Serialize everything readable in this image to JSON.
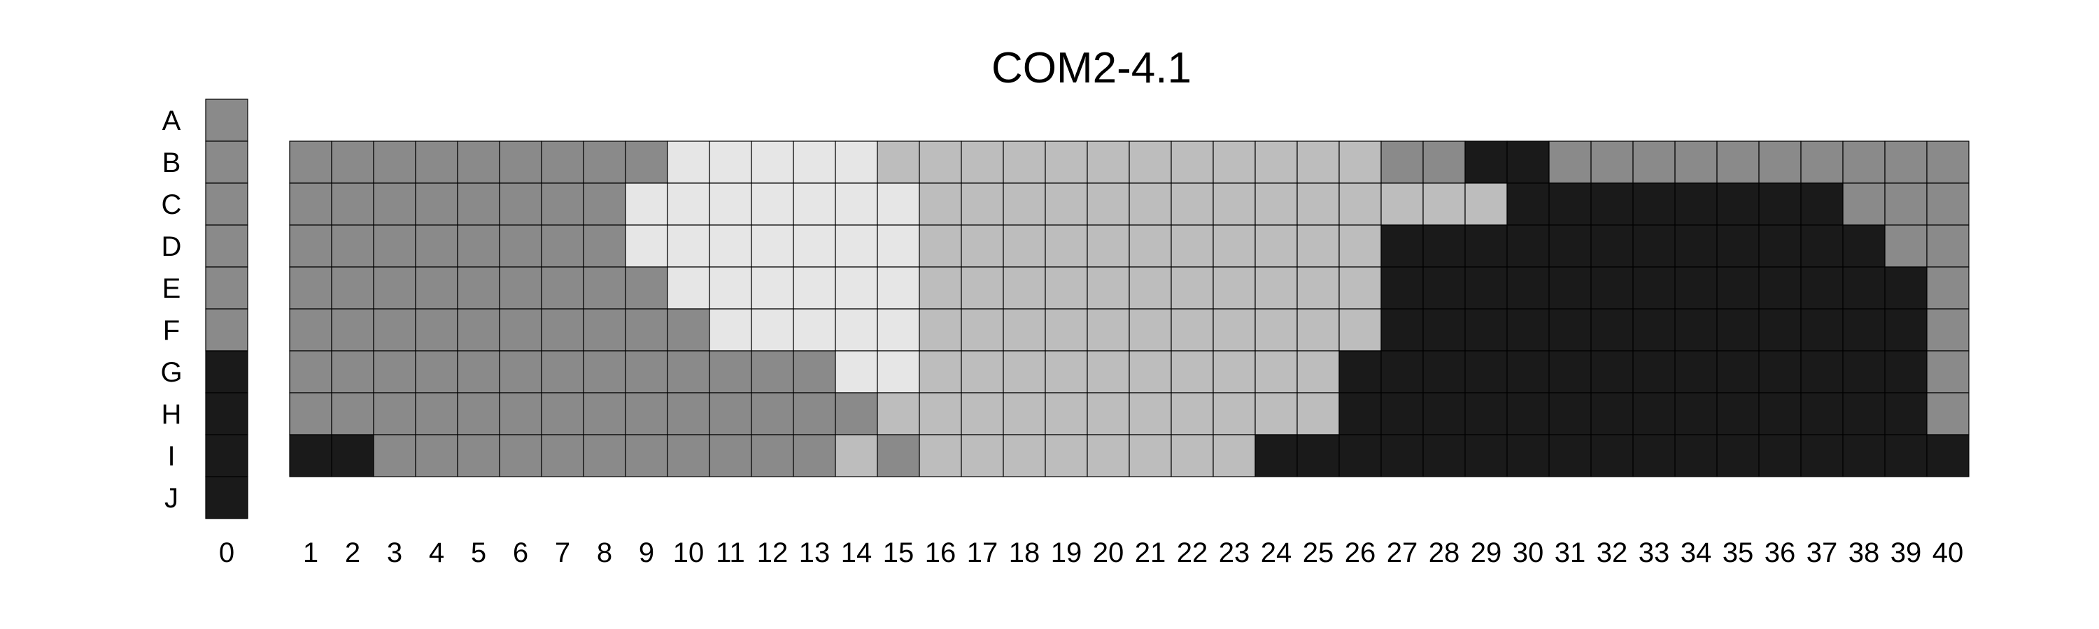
{
  "chart_data": {
    "type": "heatmap",
    "title": "COM2-4.1",
    "row_labels": [
      "A",
      "B",
      "C",
      "D",
      "E",
      "F",
      "G",
      "H",
      "I",
      "J"
    ],
    "column_labels": [
      "0",
      "1",
      "2",
      "3",
      "4",
      "5",
      "6",
      "7",
      "8",
      "9",
      "10",
      "11",
      "12",
      "13",
      "14",
      "15",
      "16",
      "17",
      "18",
      "19",
      "20",
      "21",
      "22",
      "23",
      "24",
      "25",
      "26",
      "27",
      "28",
      "29",
      "30",
      "31",
      "32",
      "33",
      "34",
      "35",
      "36",
      "37",
      "38",
      "39",
      "40"
    ],
    "palette": {
      "D": "#1a1a1a",
      "M": "#8a8a8a",
      "L": "#bdbdbd",
      "W": "#e6e6e6"
    },
    "column_0": [
      "M",
      "M",
      "M",
      "M",
      "M",
      "M",
      "D",
      "D",
      "D",
      "D"
    ],
    "grid_rows": [
      "B",
      "C",
      "D",
      "E",
      "F",
      "G",
      "H",
      "I"
    ],
    "grid": [
      "MMMMMMMMMWWWWWLLLLLLLLLLLLMMDDMMMMMMMMMM",
      "MMMMMMMMWWWWWWWLLLLLLLLLLLLLLDDDDDDDDMMM",
      "MMMMMMMMWWWWWWWLLLLLLLLLLLDDDDDDDDDDDDMM",
      "MMMMMMMMMWWWWWWLLLLLLLLLLLDDDDDDDDDDDDDM",
      "MMMMMMMMMMWWWWWLLLLLLLLLLLDDDDDDDDDDDDDM",
      "MMMMMMMMMMMMMWWLLLLLLLLLLDDDDDDDDDDDDDDM",
      "MMMMMMMMMMMMMMLLLLLLLLLLLDDDDDDDDDDDDDDM",
      "DDMMMMMMMMMMMLMLLLLLLLLDDDDDDDDDDDDDDDDD"
    ]
  }
}
